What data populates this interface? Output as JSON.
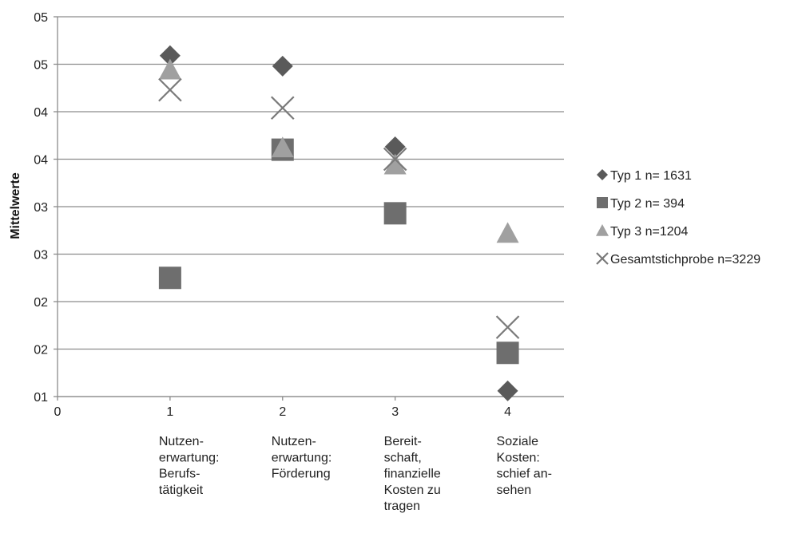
{
  "chart_data": {
    "type": "scatter",
    "ylabel": "Mittelwerte",
    "xlabel": "",
    "xlim": [
      0,
      4.5
    ],
    "ylim": [
      1,
      5
    ],
    "x_ticks": [
      "0",
      "1",
      "2",
      "3",
      "4"
    ],
    "y_ticks": [
      "01",
      "02",
      "02",
      "03",
      "03",
      "04",
      "04",
      "05",
      "05"
    ],
    "y_tick_values": [
      1,
      1.5,
      2,
      2.5,
      3,
      3.5,
      4,
      4.5,
      5
    ],
    "categories": [
      "Nutzen-\nerwartung:\nBerufs-\ntätigkeit",
      "Nutzen-\nerwartung:\nFörderung",
      "Bereit-\nschaft,\nfinanzielle\nKosten zu\ntragen",
      "Soziale\nKosten:\nschief an-\nsehen"
    ],
    "grid": true,
    "legend_position": "right",
    "series": [
      {
        "name": "Typ 1 n= 1631",
        "marker": "diamond",
        "color": "#5a5a5a",
        "x": [
          1,
          2,
          3,
          4
        ],
        "y": [
          4.59,
          4.48,
          3.63,
          1.06
        ]
      },
      {
        "name": "Typ 2 n= 394",
        "marker": "square",
        "color": "#6e6e6e",
        "x": [
          1,
          2,
          3,
          4
        ],
        "y": [
          2.25,
          3.6,
          2.93,
          1.46
        ]
      },
      {
        "name": "Typ 3 n=1204",
        "marker": "triangle",
        "color": "#a0a0a0",
        "x": [
          1,
          2,
          3,
          4
        ],
        "y": [
          4.44,
          3.62,
          3.44,
          2.72
        ]
      },
      {
        "name": "Gesamtstichprobe n=3229",
        "marker": "x",
        "color": "#7a7a7a",
        "x": [
          1,
          2,
          3,
          4
        ],
        "y": [
          4.23,
          4.04,
          3.5,
          1.73
        ]
      }
    ]
  }
}
